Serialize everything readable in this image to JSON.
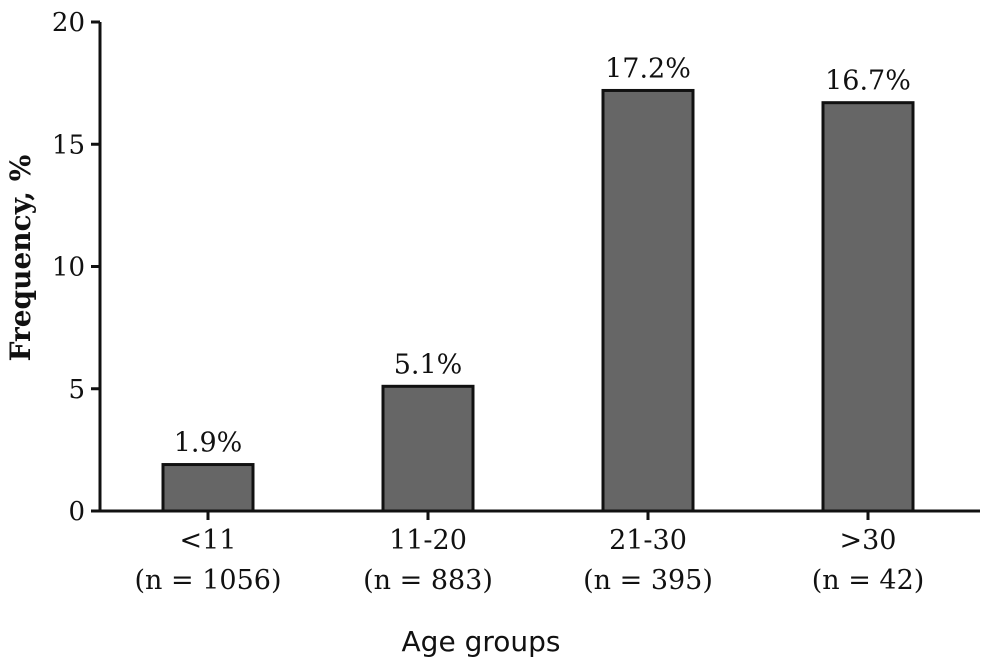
{
  "chart_data": {
    "type": "bar",
    "categories": [
      "<11",
      "11-20",
      "21-30",
      ">30"
    ],
    "category_sublabels": [
      "(n = 1056)",
      "(n = 883)",
      "(n = 395)",
      "(n = 42)"
    ],
    "values": [
      1.9,
      5.1,
      17.2,
      16.7
    ],
    "value_labels": [
      "1.9%",
      "5.1%",
      "17.2%",
      "16.7%"
    ],
    "xlabel": "Age groups",
    "ylabel": "Frequency, %",
    "ylim": [
      0,
      20
    ],
    "yticks": [
      0,
      5,
      10,
      15,
      20
    ],
    "grid": false,
    "colors": {
      "bar": "#666666",
      "edge": "#111111"
    }
  }
}
